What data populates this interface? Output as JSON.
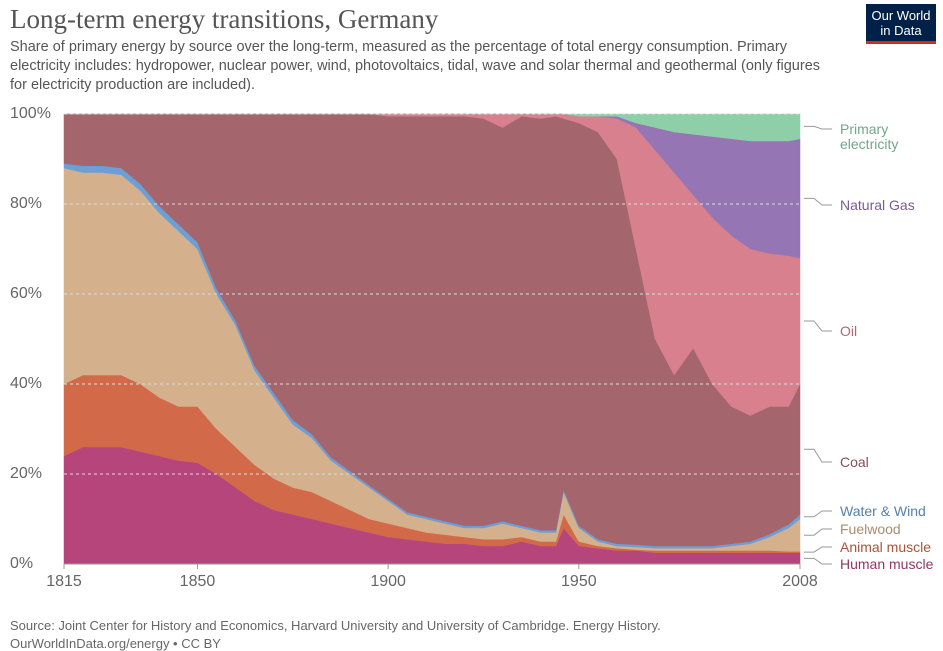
{
  "chart_data": {
    "type": "stacked_area",
    "title": "Long-term energy transitions, Germany",
    "subtitle": "Share of primary energy by source over the long-term, measured as the percentage of total energy consumption. Primary electricity includes: hydropower, nuclear power, wind, photovoltaics, tidal, wave and solar thermal and geothermal (only figures for electricity production are included).",
    "logo": [
      "Our World",
      "in Data"
    ],
    "source": "Source: Joint Center for History and Economics, Harvard University and University of Cambridge. Energy History.",
    "footer": "OurWorldInData.org/energy • CC BY",
    "x": [
      1815,
      1820,
      1825,
      1830,
      1835,
      1840,
      1845,
      1850,
      1855,
      1860,
      1865,
      1870,
      1875,
      1880,
      1885,
      1890,
      1895,
      1900,
      1905,
      1910,
      1915,
      1920,
      1925,
      1930,
      1935,
      1940,
      1944,
      1946,
      1950,
      1955,
      1960,
      1965,
      1970,
      1975,
      1980,
      1985,
      1990,
      1995,
      2000,
      2005,
      2008
    ],
    "xlim": [
      1815,
      2008
    ],
    "xticks": [
      1815,
      1850,
      1900,
      1950,
      2008
    ],
    "ylim": [
      0,
      100
    ],
    "yticks": [
      {
        "value": 0,
        "label": "0%"
      },
      {
        "value": 20,
        "label": "20%"
      },
      {
        "value": 40,
        "label": "40%"
      },
      {
        "value": 60,
        "label": "60%"
      },
      {
        "value": 80,
        "label": "80%"
      },
      {
        "value": 100,
        "label": "100%"
      }
    ],
    "grid": true,
    "series": [
      {
        "name": "Human muscle",
        "color": "#b6457c",
        "values": [
          24,
          26,
          26,
          26,
          25,
          24,
          23,
          22.5,
          20,
          17,
          14,
          12,
          11,
          10,
          9,
          8,
          7,
          6,
          5.5,
          5,
          4.5,
          4.5,
          4,
          4,
          5,
          4,
          4,
          8,
          4,
          3.5,
          3,
          3,
          2.5,
          2.5,
          2.5,
          2.5,
          2.5,
          2.5,
          2.5,
          2.5,
          2.5
        ]
      },
      {
        "name": "Animal muscle",
        "color": "#d26a4a",
        "values": [
          16,
          16,
          16,
          16,
          15,
          13,
          12,
          12.5,
          10,
          9,
          8,
          7,
          6,
          6,
          5,
          4,
          3,
          3,
          2.5,
          2,
          2,
          1.5,
          1.5,
          1.5,
          1,
          1,
          1,
          3,
          1,
          0.5,
          0.5,
          0.2,
          0.5,
          0.5,
          0.5,
          0.5,
          0.5,
          0.5,
          0.5,
          0.3,
          0.3
        ]
      },
      {
        "name": "Fuelwood",
        "color": "#d4b08c",
        "values": [
          48,
          45,
          45,
          44.5,
          43,
          41,
          39,
          35,
          30,
          27,
          21,
          18,
          14,
          12,
          9,
          8,
          7,
          5,
          3,
          3,
          2.5,
          2,
          2.5,
          3.5,
          2,
          2,
          2,
          5,
          3,
          1,
          0.5,
          0.6,
          0.5,
          0.5,
          0.5,
          0.5,
          1,
          1.5,
          3,
          5.2,
          7.2
        ]
      },
      {
        "name": "Water & Wind",
        "color": "#6a9fd8",
        "values": [
          1,
          1.5,
          1.5,
          1.5,
          1.5,
          1.5,
          1.5,
          1.5,
          1.2,
          1,
          1,
          1,
          1,
          0.8,
          0.7,
          0.6,
          0.5,
          0.5,
          0.5,
          0.5,
          0.5,
          0.5,
          0.5,
          0.5,
          0.5,
          0.5,
          0.5,
          0.5,
          0.5,
          0.5,
          0.5,
          0.5,
          0.5,
          0.5,
          0.5,
          0.5,
          0.5,
          0.5,
          0.6,
          0.8,
          1
        ]
      },
      {
        "name": "Coal",
        "color": "#a5656d",
        "values": [
          11,
          11.5,
          11.5,
          12,
          15.5,
          20.5,
          24.5,
          28.5,
          38.8,
          46,
          56,
          62,
          68,
          71.2,
          76.3,
          79.4,
          82.5,
          85,
          88,
          89,
          90,
          91,
          90.5,
          87.5,
          91,
          91.5,
          92,
          82.5,
          89.5,
          90.5,
          85.5,
          65.7,
          46,
          38,
          44,
          36,
          30.5,
          28,
          28.4,
          26.2,
          29
        ]
      },
      {
        "name": "Oil",
        "color": "#d9808e",
        "values": [
          0,
          0,
          0,
          0,
          0,
          0,
          0,
          0,
          0,
          0,
          0,
          0,
          0,
          0,
          0,
          0,
          0,
          0.5,
          0.5,
          0.5,
          0.5,
          0.5,
          1,
          3,
          0.5,
          1,
          0.5,
          1,
          1.5,
          3.5,
          9,
          27,
          42,
          45,
          34,
          37,
          38,
          37,
          34,
          33.5,
          28
        ]
      },
      {
        "name": "Natural Gas",
        "color": "#9675b4",
        "values": [
          0,
          0,
          0,
          0,
          0,
          0,
          0,
          0,
          0,
          0,
          0,
          0,
          0,
          0,
          0,
          0,
          0,
          0,
          0,
          0,
          0,
          0,
          0,
          0,
          0,
          0,
          0,
          0,
          0,
          0,
          0.5,
          1,
          5,
          9,
          13.5,
          18,
          21.5,
          24,
          25,
          25.5,
          26.5
        ]
      },
      {
        "name": "Primary electricity",
        "color": "#8ecfaa",
        "values": [
          0,
          0,
          0,
          0,
          0,
          0,
          0,
          0,
          0,
          0,
          0,
          0,
          0,
          0,
          0,
          0,
          0,
          0,
          0,
          0,
          0,
          0,
          0,
          0,
          0,
          0,
          0,
          0,
          0.5,
          0.5,
          0.5,
          2,
          3,
          4,
          4.5,
          5,
          5.5,
          6,
          6,
          6,
          5.5
        ]
      }
    ]
  }
}
